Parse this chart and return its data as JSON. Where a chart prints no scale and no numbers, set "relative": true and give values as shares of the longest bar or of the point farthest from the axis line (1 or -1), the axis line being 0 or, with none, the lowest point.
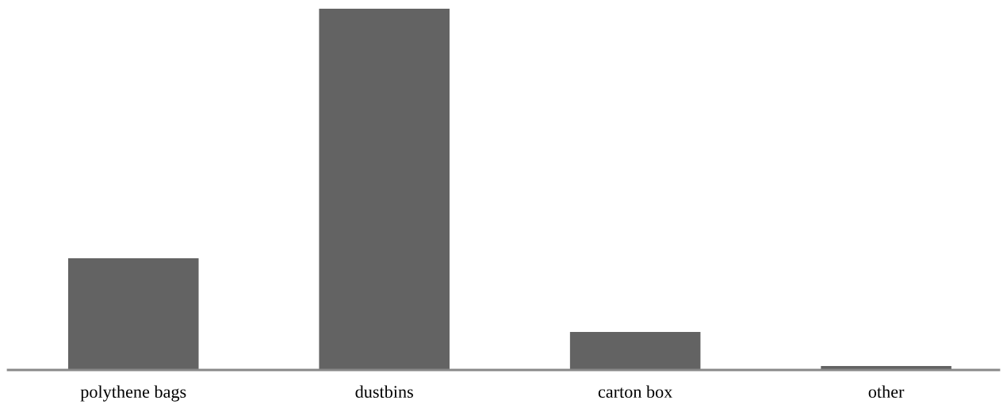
{
  "chart_data": {
    "type": "bar",
    "relative": true,
    "categories": [
      "polythene bags",
      "dustbins",
      "carton box",
      "other"
    ],
    "values": [
      0.309,
      1,
      0.105,
      0.011
    ],
    "color": "#636363"
  }
}
